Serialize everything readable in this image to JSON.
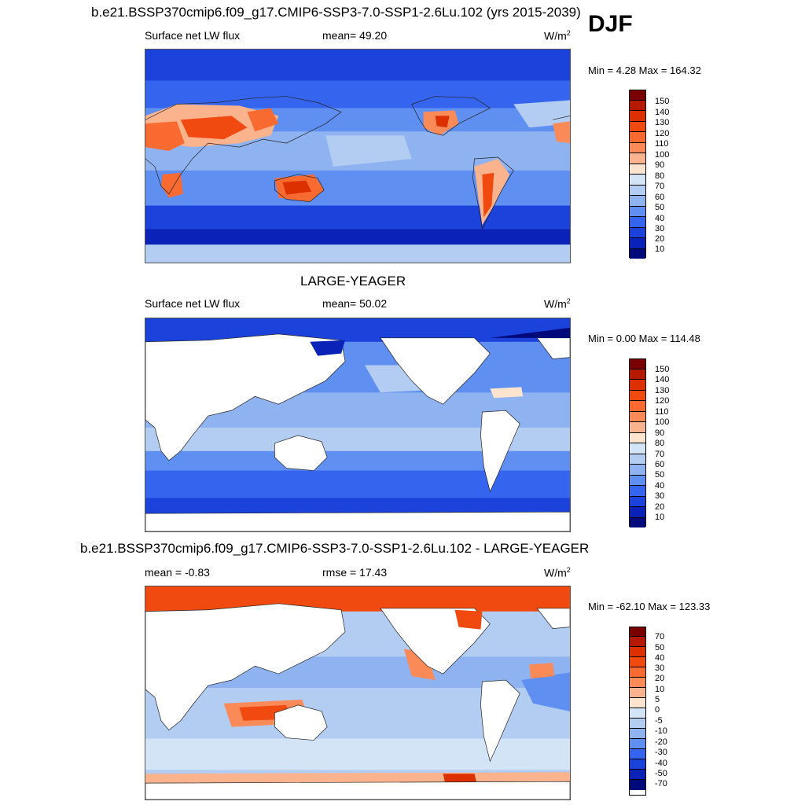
{
  "season": "DJF",
  "panels": [
    {
      "title": "b.e21.BSSP370cmip6.f09_g17.CMIP6-SSP3-7.0-SSP1-2.6Lu.102 (yrs 2015-2039)",
      "left_label": "Surface net LW flux",
      "center_label": "mean=  49.20",
      "units": "W/m",
      "units_exp": "2",
      "minmax": "Min =   4.28 Max = 164.32",
      "colorbar_ticks": [
        "150",
        "140",
        "130",
        "120",
        "110",
        "100",
        "90",
        "80",
        "70",
        "60",
        "50",
        "40",
        "30",
        "20",
        "10"
      ],
      "land_visible": true
    },
    {
      "title": "LARGE-YEAGER",
      "left_label": "Surface net LW flux",
      "center_label": "mean=  50.02",
      "units": "W/m",
      "units_exp": "2",
      "minmax": "Min =   0.00 Max = 114.48",
      "colorbar_ticks": [
        "150",
        "140",
        "130",
        "120",
        "110",
        "100",
        "90",
        "80",
        "70",
        "60",
        "50",
        "40",
        "30",
        "20",
        "10"
      ],
      "land_visible": false
    },
    {
      "title": "b.e21.BSSP370cmip6.f09_g17.CMIP6-SSP3-7.0-SSP1-2.6Lu.102 - LARGE-YEAGER",
      "left_label": "mean =  -0.83",
      "center_label": "rmse =  17.43",
      "units": "W/m",
      "units_exp": "2",
      "minmax": "Min = -62.10 Max = 123.33",
      "colorbar_ticks": [
        "70",
        "50",
        "40",
        "30",
        "20",
        "10",
        "5",
        "0",
        "-5",
        "-10",
        "-20",
        "-30",
        "-40",
        "-50",
        "-70"
      ],
      "land_visible": false
    }
  ],
  "colors": {
    "abs_scale": [
      "#7a0000",
      "#b41a00",
      "#dc3000",
      "#f04a10",
      "#f86a30",
      "#fa8a58",
      "#fbb38e",
      "#fde4cf",
      "#d3e4f7",
      "#b3cdf2",
      "#8fb3f0",
      "#5f8ff0",
      "#3565ee",
      "#1c42dc",
      "#0b22b8",
      "#000a7a"
    ],
    "diff_scale": [
      "#7a0000",
      "#b41a00",
      "#dc3000",
      "#f04a10",
      "#f86a30",
      "#fa8a58",
      "#fbb38e",
      "#fde4cf",
      "#ffffff",
      "#d3e4f7",
      "#b3cdf2",
      "#8fb3f0",
      "#5f8ff0",
      "#3565ee",
      "#1c42dc",
      "#0b22b8",
      "#000a7a"
    ]
  }
}
